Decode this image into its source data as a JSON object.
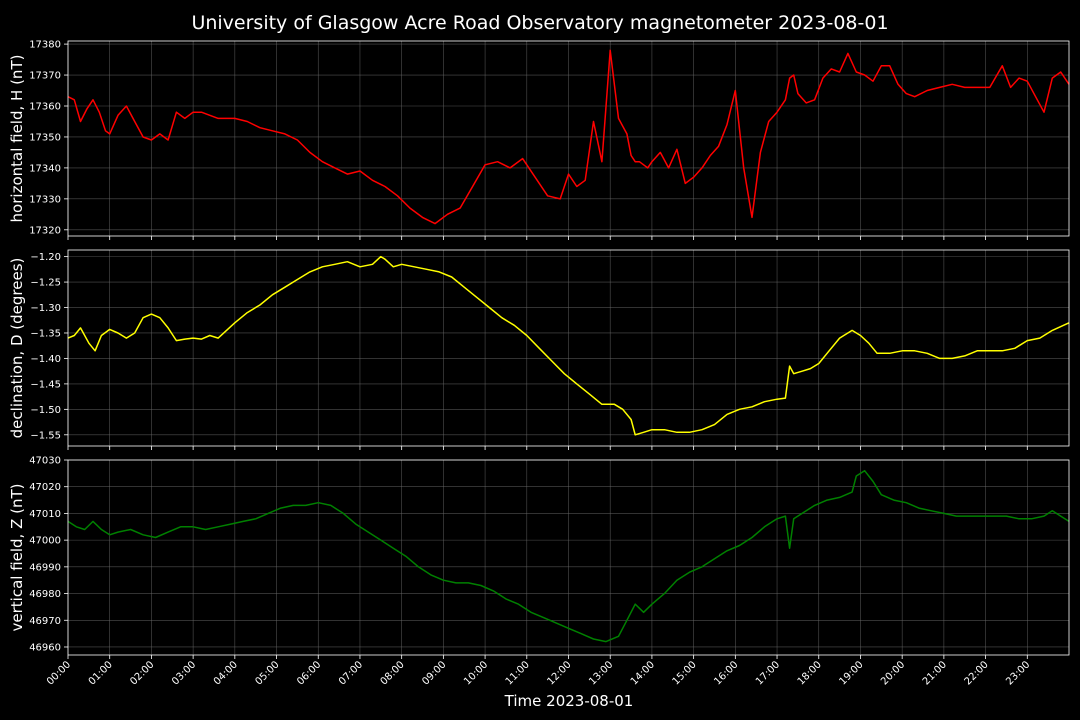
{
  "chart_data": {
    "type": "line",
    "title": "University of Glasgow Acre Road Observatory magnetometer 2023-08-01",
    "xlabel": "Time 2023-08-01",
    "x_ticks": [
      "00:00",
      "01:00",
      "02:00",
      "03:00",
      "04:00",
      "05:00",
      "06:00",
      "07:00",
      "08:00",
      "09:00",
      "10:00",
      "11:00",
      "12:00",
      "13:00",
      "14:00",
      "15:00",
      "16:00",
      "17:00",
      "18:00",
      "19:00",
      "20:00",
      "21:00",
      "22:00",
      "23:00"
    ],
    "xlim_hours": [
      0,
      24
    ],
    "grid": true,
    "panels": [
      {
        "ylabel": "horizontal field, H (nT)",
        "color": "#ff0000",
        "ylim": [
          17318,
          17381
        ],
        "y_ticks": [
          17320,
          17330,
          17340,
          17350,
          17360,
          17370,
          17380
        ],
        "y_tick_labels": [
          "17320",
          "17330",
          "17340",
          "17350",
          "17360",
          "17370",
          "17380"
        ],
        "x": [
          0,
          0.15,
          0.3,
          0.45,
          0.6,
          0.75,
          0.9,
          1.0,
          1.2,
          1.4,
          1.6,
          1.8,
          2.0,
          2.2,
          2.4,
          2.6,
          2.8,
          3.0,
          3.2,
          3.4,
          3.6,
          3.8,
          4.0,
          4.3,
          4.6,
          4.9,
          5.2,
          5.5,
          5.8,
          6.1,
          6.4,
          6.7,
          7.0,
          7.3,
          7.6,
          7.9,
          8.2,
          8.5,
          8.8,
          9.1,
          9.4,
          9.7,
          10.0,
          10.3,
          10.6,
          10.9,
          11.2,
          11.5,
          11.8,
          12.0,
          12.2,
          12.4,
          12.6,
          12.8,
          13.0,
          13.2,
          13.4,
          13.5,
          13.6,
          13.7,
          13.8,
          13.9,
          14.0,
          14.2,
          14.4,
          14.6,
          14.8,
          15.0,
          15.2,
          15.4,
          15.6,
          15.8,
          16.0,
          16.2,
          16.4,
          16.6,
          16.8,
          17.0,
          17.2,
          17.3,
          17.4,
          17.5,
          17.7,
          17.9,
          18.1,
          18.3,
          18.5,
          18.7,
          18.9,
          19.1,
          19.3,
          19.5,
          19.7,
          19.9,
          20.1,
          20.3,
          20.6,
          20.9,
          21.2,
          21.5,
          21.8,
          22.1,
          22.4,
          22.6,
          22.8,
          23.0,
          23.2,
          23.4,
          23.6,
          23.8,
          24.0
        ],
        "y": [
          17363,
          17362,
          17355,
          17359,
          17362,
          17358,
          17352,
          17351,
          17357,
          17360,
          17355,
          17350,
          17349,
          17351,
          17349,
          17358,
          17356,
          17358,
          17358,
          17357,
          17356,
          17356,
          17356,
          17355,
          17353,
          17352,
          17351,
          17349,
          17345,
          17342,
          17340,
          17338,
          17339,
          17336,
          17334,
          17331,
          17327,
          17324,
          17322,
          17325,
          17327,
          17334,
          17341,
          17342,
          17340,
          17343,
          17337,
          17331,
          17330,
          17338,
          17334,
          17336,
          17355,
          17342,
          17378,
          17356,
          17351,
          17344,
          17342,
          17342,
          17341,
          17340,
          17342,
          17345,
          17340,
          17346,
          17335,
          17337,
          17340,
          17344,
          17347,
          17354,
          17365,
          17340,
          17324,
          17345,
          17355,
          17358,
          17362,
          17369,
          17370,
          17364,
          17361,
          17362,
          17369,
          17372,
          17371,
          17377,
          17371,
          17370,
          17368,
          17373,
          17373,
          17367,
          17364,
          17363,
          17365,
          17366,
          17367,
          17366,
          17366,
          17366,
          17373,
          17366,
          17369,
          17368,
          17363,
          17358,
          17369,
          17371,
          17367
        ]
      },
      {
        "ylabel": "declination, D (degrees)",
        "color": "#ffff00",
        "ylim": [
          -1.572,
          -1.187
        ],
        "y_ticks": [
          -1.55,
          -1.5,
          -1.45,
          -1.4,
          -1.35,
          -1.3,
          -1.25,
          -1.2
        ],
        "y_tick_labels": [
          "−1.55",
          "−1.50",
          "−1.45",
          "−1.40",
          "−1.35",
          "−1.30",
          "−1.25",
          "−1.20"
        ],
        "x": [
          0,
          0.15,
          0.3,
          0.5,
          0.65,
          0.8,
          1.0,
          1.2,
          1.4,
          1.6,
          1.8,
          2.0,
          2.2,
          2.4,
          2.6,
          2.8,
          3.0,
          3.2,
          3.4,
          3.6,
          3.8,
          4.0,
          4.3,
          4.6,
          4.9,
          5.2,
          5.5,
          5.8,
          6.1,
          6.4,
          6.7,
          7.0,
          7.3,
          7.5,
          7.6,
          7.8,
          8.0,
          8.3,
          8.6,
          8.9,
          9.2,
          9.5,
          9.8,
          10.1,
          10.4,
          10.7,
          11.0,
          11.3,
          11.6,
          11.9,
          12.2,
          12.5,
          12.8,
          13.1,
          13.3,
          13.5,
          13.6,
          13.8,
          14.0,
          14.3,
          14.6,
          14.9,
          15.2,
          15.5,
          15.8,
          16.1,
          16.4,
          16.7,
          17.0,
          17.2,
          17.3,
          17.4,
          17.6,
          17.8,
          18.0,
          18.2,
          18.5,
          18.8,
          19.0,
          19.2,
          19.4,
          19.7,
          20.0,
          20.3,
          20.6,
          20.9,
          21.2,
          21.5,
          21.8,
          22.1,
          22.4,
          22.7,
          23.0,
          23.3,
          23.6,
          24.0
        ],
        "y": [
          -1.36,
          -1.355,
          -1.34,
          -1.37,
          -1.385,
          -1.355,
          -1.343,
          -1.35,
          -1.36,
          -1.35,
          -1.32,
          -1.313,
          -1.32,
          -1.34,
          -1.365,
          -1.362,
          -1.36,
          -1.362,
          -1.355,
          -1.36,
          -1.345,
          -1.33,
          -1.31,
          -1.295,
          -1.275,
          -1.26,
          -1.245,
          -1.23,
          -1.22,
          -1.215,
          -1.21,
          -1.22,
          -1.215,
          -1.2,
          -1.205,
          -1.22,
          -1.215,
          -1.22,
          -1.225,
          -1.23,
          -1.24,
          -1.26,
          -1.28,
          -1.3,
          -1.32,
          -1.335,
          -1.355,
          -1.38,
          -1.405,
          -1.43,
          -1.45,
          -1.47,
          -1.49,
          -1.49,
          -1.5,
          -1.52,
          -1.55,
          -1.545,
          -1.54,
          -1.54,
          -1.545,
          -1.545,
          -1.54,
          -1.53,
          -1.51,
          -1.5,
          -1.495,
          -1.485,
          -1.48,
          -1.478,
          -1.415,
          -1.43,
          -1.425,
          -1.42,
          -1.41,
          -1.39,
          -1.36,
          -1.345,
          -1.355,
          -1.37,
          -1.39,
          -1.39,
          -1.385,
          -1.385,
          -1.39,
          -1.4,
          -1.4,
          -1.395,
          -1.385,
          -1.385,
          -1.385,
          -1.38,
          -1.365,
          -1.36,
          -1.345,
          -1.33
        ]
      },
      {
        "ylabel": "vertical field, Z (nT)",
        "color": "#008000",
        "ylim": [
          46957,
          47030
        ],
        "y_ticks": [
          46960,
          46970,
          46980,
          46990,
          47000,
          47010,
          47020,
          47030
        ],
        "y_tick_labels": [
          "46960",
          "46970",
          "46980",
          "46990",
          "47000",
          "47010",
          "47020",
          "47030"
        ],
        "x": [
          0,
          0.2,
          0.4,
          0.6,
          0.8,
          1.0,
          1.2,
          1.5,
          1.8,
          2.1,
          2.4,
          2.7,
          3.0,
          3.3,
          3.6,
          3.9,
          4.2,
          4.5,
          4.8,
          5.1,
          5.4,
          5.7,
          6.0,
          6.3,
          6.6,
          6.9,
          7.2,
          7.5,
          7.8,
          8.1,
          8.4,
          8.7,
          9.0,
          9.3,
          9.6,
          9.9,
          10.2,
          10.5,
          10.8,
          11.1,
          11.4,
          11.7,
          12.0,
          12.3,
          12.6,
          12.9,
          13.2,
          13.4,
          13.6,
          13.8,
          14.0,
          14.3,
          14.6,
          14.9,
          15.2,
          15.5,
          15.8,
          16.1,
          16.4,
          16.7,
          17.0,
          17.2,
          17.3,
          17.4,
          17.6,
          17.9,
          18.2,
          18.5,
          18.8,
          18.9,
          19.1,
          19.3,
          19.5,
          19.8,
          20.1,
          20.4,
          20.7,
          21.0,
          21.3,
          21.6,
          21.9,
          22.2,
          22.5,
          22.8,
          23.1,
          23.4,
          23.6,
          23.8,
          24.0
        ],
        "y": [
          47007,
          47005,
          47004,
          47007,
          47004,
          47002,
          47003,
          47004,
          47002,
          47001,
          47003,
          47005,
          47005,
          47004,
          47005,
          47006,
          47007,
          47008,
          47010,
          47012,
          47013,
          47013,
          47014,
          47013,
          47010,
          47006,
          47003,
          47000,
          46997,
          46994,
          46990,
          46987,
          46985,
          46984,
          46984,
          46983,
          46981,
          46978,
          46976,
          46973,
          46971,
          46969,
          46967,
          46965,
          46963,
          46962,
          46964,
          46970,
          46976,
          46973,
          46976,
          46980,
          46985,
          46988,
          46990,
          46993,
          46996,
          46998,
          47001,
          47005,
          47008,
          47009,
          46997,
          47008,
          47010,
          47013,
          47015,
          47016,
          47018,
          47024,
          47026,
          47022,
          47017,
          47015,
          47014,
          47012,
          47011,
          47010,
          47009,
          47009,
          47009,
          47009,
          47009,
          47008,
          47008,
          47009,
          47011,
          47009,
          47007
        ]
      }
    ]
  }
}
